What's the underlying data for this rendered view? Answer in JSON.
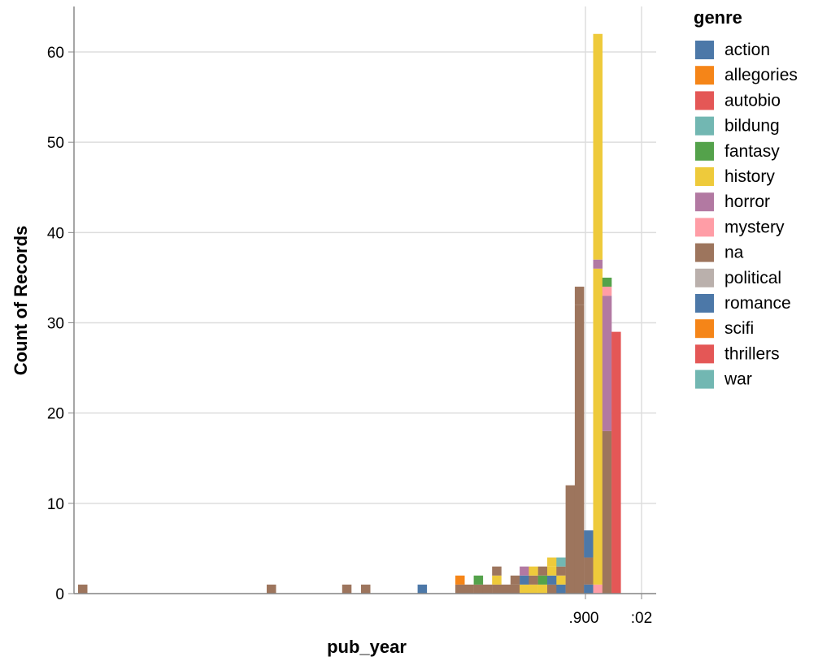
{
  "chart_data": {
    "type": "bar",
    "subtype": "stacked-histogram",
    "title": "",
    "xlabel": "pub_year",
    "ylabel": "Count of Records",
    "ylim": [
      0,
      65
    ],
    "y_ticks": [
      0,
      10,
      20,
      30,
      40,
      50,
      60
    ],
    "x_tick_labels": [
      ".900",
      ":02"
    ],
    "grid": true,
    "legend": {
      "title": "genre",
      "placement": "right",
      "entries": [
        {
          "name": "action",
          "color": "#4c78a8"
        },
        {
          "name": "allegories",
          "color": "#f58518"
        },
        {
          "name": "autobio",
          "color": "#e45756"
        },
        {
          "name": "bildung",
          "color": "#72b7b2"
        },
        {
          "name": "fantasy",
          "color": "#54a24b"
        },
        {
          "name": "history",
          "color": "#eeca3b"
        },
        {
          "name": "horror",
          "color": "#b279a2"
        },
        {
          "name": "mystery",
          "color": "#ff9da6"
        },
        {
          "name": "na",
          "color": "#9d755d"
        },
        {
          "name": "political",
          "color": "#bab0ac"
        },
        {
          "name": "romance",
          "color": "#4c78a8"
        },
        {
          "name": "scifi",
          "color": "#f58518"
        },
        {
          "name": "thrillers",
          "color": "#e45756"
        },
        {
          "name": "war",
          "color": "#72b7b2"
        }
      ]
    },
    "bins": [
      {
        "bin": 0,
        "stack": [
          [
            "na",
            1
          ]
        ]
      },
      {
        "bin": 10,
        "stack": [
          [
            "na",
            1
          ]
        ]
      },
      {
        "bin": 14,
        "stack": [
          [
            "na",
            1
          ]
        ]
      },
      {
        "bin": 15,
        "stack": [
          [
            "na",
            1
          ]
        ]
      },
      {
        "bin": 18,
        "stack": [
          [
            "action",
            1
          ]
        ]
      },
      {
        "bin": 20,
        "stack": [
          [
            "na",
            1
          ],
          [
            "allegories",
            1
          ]
        ]
      },
      {
        "bin": 21,
        "stack": [
          [
            "na",
            1
          ]
        ]
      },
      {
        "bin": 22,
        "stack": [
          [
            "na",
            1
          ],
          [
            "fantasy",
            1
          ]
        ]
      },
      {
        "bin": 23,
        "stack": [
          [
            "na",
            1
          ]
        ]
      },
      {
        "bin": 24,
        "stack": [
          [
            "na",
            1
          ],
          [
            "history",
            1
          ],
          [
            "na",
            1
          ]
        ]
      },
      {
        "bin": 25,
        "stack": [
          [
            "na",
            1
          ]
        ]
      },
      {
        "bin": 26,
        "stack": [
          [
            "na",
            1
          ],
          [
            "na",
            1
          ]
        ]
      },
      {
        "bin": 27,
        "stack": [
          [
            "history",
            1
          ],
          [
            "action",
            1
          ],
          [
            "horror",
            1
          ]
        ]
      },
      {
        "bin": 28,
        "stack": [
          [
            "history",
            1
          ],
          [
            "na",
            1
          ],
          [
            "history",
            1
          ]
        ]
      },
      {
        "bin": 29,
        "stack": [
          [
            "history",
            1
          ],
          [
            "fantasy",
            1
          ],
          [
            "na",
            1
          ]
        ]
      },
      {
        "bin": 30,
        "stack": [
          [
            "na",
            1
          ],
          [
            "romance",
            1
          ],
          [
            "history",
            1
          ],
          [
            "history",
            1
          ]
        ]
      },
      {
        "bin": 31,
        "stack": [
          [
            "action",
            1
          ],
          [
            "history",
            1
          ],
          [
            "na",
            1
          ],
          [
            "bildung",
            1
          ]
        ]
      },
      {
        "bin": 32,
        "stack": [
          [
            "na",
            12
          ]
        ]
      },
      {
        "bin": 33,
        "stack": [
          [
            "na",
            32
          ],
          [
            "na",
            2
          ]
        ]
      },
      {
        "bin": 34,
        "stack": [
          [
            "action",
            1
          ],
          [
            "na",
            3
          ],
          [
            "romance",
            3
          ]
        ]
      },
      {
        "bin": 35,
        "stack": [
          [
            "mystery",
            1
          ],
          [
            "history",
            35
          ],
          [
            "horror",
            1
          ],
          [
            "history",
            25
          ]
        ]
      },
      {
        "bin": 36,
        "stack": [
          [
            "na",
            18
          ],
          [
            "horror",
            15
          ],
          [
            "mystery",
            1
          ],
          [
            "fantasy",
            1
          ]
        ]
      },
      {
        "bin": 37,
        "stack": [
          [
            "thrillers",
            29
          ]
        ]
      }
    ]
  }
}
